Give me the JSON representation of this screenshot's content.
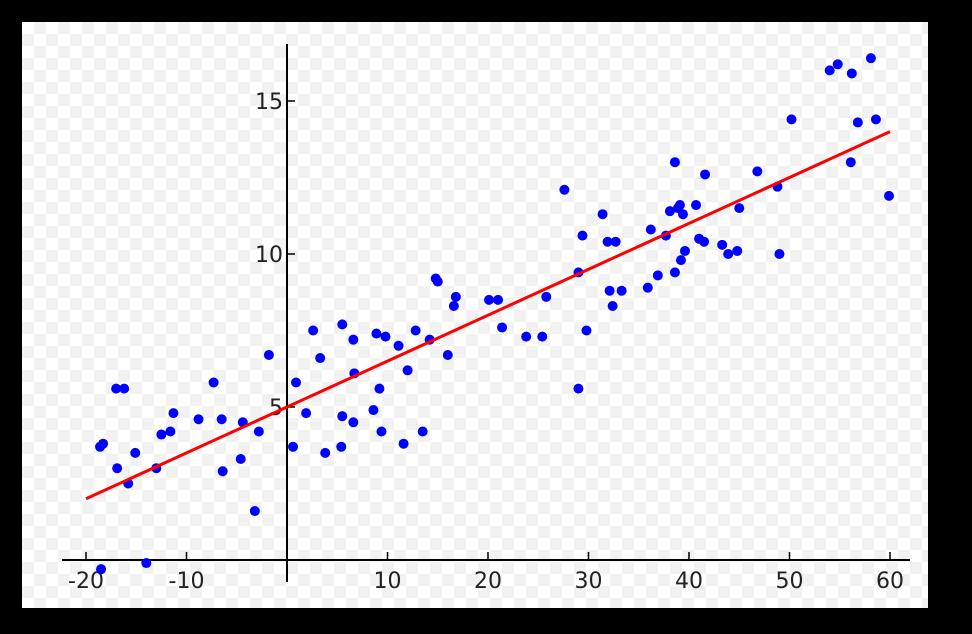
{
  "chart_data": {
    "type": "scatter",
    "title": "",
    "xlabel": "",
    "ylabel": "",
    "xlim": [
      -22,
      62
    ],
    "ylim": [
      -0.3,
      16.8
    ],
    "xticks": [
      -20,
      -10,
      10,
      20,
      30,
      40,
      50,
      60
    ],
    "yticks": [
      5,
      10,
      15
    ],
    "grid": false,
    "colors": {
      "points": "#0000ff",
      "line": "#ff0000",
      "axes": "#000000"
    },
    "series": [
      {
        "type": "scatter",
        "points": [
          [
            -18.5,
            -0.3
          ],
          [
            -18.6,
            3.7
          ],
          [
            -18.3,
            3.8
          ],
          [
            -17.0,
            5.6
          ],
          [
            -16.2,
            5.6
          ],
          [
            -16.9,
            3.0
          ],
          [
            -15.8,
            2.5
          ],
          [
            -15.1,
            3.5
          ],
          [
            -14.0,
            -0.1
          ],
          [
            -13.0,
            3.0
          ],
          [
            -12.5,
            4.1
          ],
          [
            -11.6,
            4.2
          ],
          [
            -11.3,
            4.8
          ],
          [
            -8.8,
            4.6
          ],
          [
            -7.3,
            5.8
          ],
          [
            -6.5,
            4.6
          ],
          [
            -6.4,
            2.9
          ],
          [
            -4.6,
            3.3
          ],
          [
            -4.4,
            4.5
          ],
          [
            -3.2,
            1.6
          ],
          [
            -2.8,
            4.2
          ],
          [
            -1.8,
            6.7
          ],
          [
            0.6,
            3.7
          ],
          [
            0.9,
            5.8
          ],
          [
            1.9,
            4.8
          ],
          [
            2.6,
            7.5
          ],
          [
            3.3,
            6.6
          ],
          [
            3.8,
            3.5
          ],
          [
            5.4,
            3.7
          ],
          [
            5.5,
            4.7
          ],
          [
            5.5,
            7.7
          ],
          [
            6.6,
            4.5
          ],
          [
            6.7,
            6.1
          ],
          [
            6.6,
            7.2
          ],
          [
            8.6,
            4.9
          ],
          [
            8.9,
            7.4
          ],
          [
            9.2,
            5.6
          ],
          [
            9.4,
            4.2
          ],
          [
            9.8,
            7.3
          ],
          [
            11.1,
            7.0
          ],
          [
            11.6,
            3.8
          ],
          [
            12.0,
            6.2
          ],
          [
            12.8,
            7.5
          ],
          [
            13.5,
            4.2
          ],
          [
            14.2,
            7.2
          ],
          [
            14.8,
            9.2
          ],
          [
            15.0,
            9.1
          ],
          [
            16.0,
            6.7
          ],
          [
            16.6,
            8.3
          ],
          [
            16.8,
            8.6
          ],
          [
            20.1,
            8.5
          ],
          [
            21.0,
            8.5
          ],
          [
            21.4,
            7.6
          ],
          [
            23.8,
            7.3
          ],
          [
            25.4,
            7.3
          ],
          [
            25.8,
            8.6
          ],
          [
            27.6,
            12.1
          ],
          [
            29.0,
            5.6
          ],
          [
            29.0,
            9.4
          ],
          [
            29.4,
            10.6
          ],
          [
            29.8,
            7.5
          ],
          [
            31.4,
            11.3
          ],
          [
            31.9,
            10.4
          ],
          [
            32.1,
            8.8
          ],
          [
            32.4,
            8.3
          ],
          [
            32.7,
            10.4
          ],
          [
            33.3,
            8.8
          ],
          [
            35.9,
            8.9
          ],
          [
            36.2,
            10.8
          ],
          [
            36.9,
            9.3
          ],
          [
            37.7,
            10.6
          ],
          [
            38.1,
            11.4
          ],
          [
            38.6,
            9.4
          ],
          [
            38.6,
            13.0
          ],
          [
            38.9,
            11.5
          ],
          [
            39.1,
            11.6
          ],
          [
            39.2,
            9.8
          ],
          [
            39.4,
            11.3
          ],
          [
            39.6,
            10.1
          ],
          [
            40.7,
            11.6
          ],
          [
            41.0,
            10.5
          ],
          [
            41.5,
            10.4
          ],
          [
            41.6,
            12.6
          ],
          [
            43.3,
            10.3
          ],
          [
            43.9,
            10.0
          ],
          [
            44.8,
            10.1
          ],
          [
            45.0,
            11.5
          ],
          [
            46.8,
            12.7
          ],
          [
            48.8,
            12.2
          ],
          [
            49.0,
            10.0
          ],
          [
            50.2,
            14.4
          ],
          [
            54.0,
            16.0
          ],
          [
            54.8,
            16.2
          ],
          [
            56.1,
            13.0
          ],
          [
            56.2,
            15.9
          ],
          [
            56.8,
            14.3
          ],
          [
            58.1,
            16.4
          ],
          [
            58.6,
            14.4
          ],
          [
            59.9,
            11.9
          ]
        ]
      },
      {
        "type": "line",
        "points": [
          [
            -20,
            2.0
          ],
          [
            60,
            14.0
          ]
        ]
      }
    ]
  }
}
